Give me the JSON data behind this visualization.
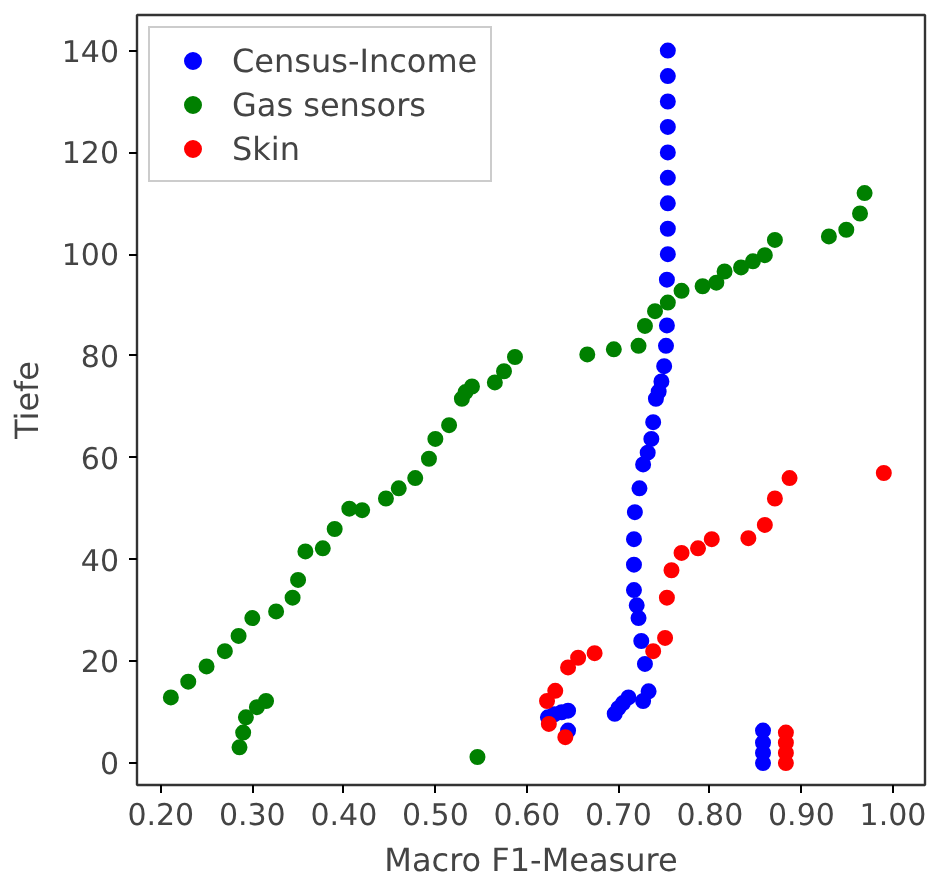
{
  "chart_data": {
    "type": "scatter",
    "xlabel": "Macro F1-Measure",
    "ylabel": "Tiefe",
    "xlim": [
      0.174,
      1.035
    ],
    "ylim": [
      -4.3,
      147
    ],
    "xticks": [
      {
        "value": 0.2,
        "label": "0.20"
      },
      {
        "value": 0.3,
        "label": "0.30"
      },
      {
        "value": 0.4,
        "label": "0.40"
      },
      {
        "value": 0.5,
        "label": "0.50"
      },
      {
        "value": 0.6,
        "label": "0.60"
      },
      {
        "value": 0.7,
        "label": "0.70"
      },
      {
        "value": 0.8,
        "label": "0.80"
      },
      {
        "value": 0.9,
        "label": "0.90"
      },
      {
        "value": 1.0,
        "label": "1.00"
      }
    ],
    "yticks": [
      0,
      20,
      40,
      60,
      80,
      100,
      120,
      140
    ],
    "grid": false,
    "legend": "top left",
    "marker": "circle",
    "series": [
      {
        "name": "Census-Income",
        "color": "#0000ff",
        "x": [
          0.754,
          0.754,
          0.754,
          0.754,
          0.754,
          0.754,
          0.754,
          0.754,
          0.754,
          0.753,
          0.753,
          0.752,
          0.75,
          0.747,
          0.744,
          0.741,
          0.738,
          0.736,
          0.732,
          0.727,
          0.723,
          0.718,
          0.717,
          0.717,
          0.717,
          0.72,
          0.722,
          0.725,
          0.729,
          0.733,
          0.727,
          0.711,
          0.705,
          0.7,
          0.696,
          0.645,
          0.638,
          0.63,
          0.623,
          0.645,
          0.858,
          0.858,
          0.858,
          0.858
        ],
        "values": [
          140,
          135,
          130,
          125,
          120,
          115,
          110,
          105,
          100,
          95,
          86,
          82,
          78,
          75,
          73,
          71.6,
          67,
          63.7,
          61,
          58.7,
          54,
          49.3,
          44,
          39,
          34,
          31,
          28.5,
          24,
          19.5,
          14.1,
          12.2,
          12.9,
          11.8,
          10.8,
          9.7,
          10.3,
          10,
          9.6,
          9,
          6.4,
          0,
          2,
          4,
          6.4
        ]
      },
      {
        "name": "Gas sensors",
        "color": "#008000",
        "x": [
          0.211,
          0.23,
          0.25,
          0.27,
          0.285,
          0.3,
          0.326,
          0.344,
          0.35,
          0.358,
          0.377,
          0.39,
          0.406,
          0.42,
          0.446,
          0.46,
          0.478,
          0.493,
          0.5,
          0.515,
          0.529,
          0.533,
          0.54,
          0.565,
          0.575,
          0.587,
          0.666,
          0.695,
          0.722,
          0.729,
          0.74,
          0.754,
          0.769,
          0.792,
          0.807,
          0.816,
          0.834,
          0.847,
          0.86,
          0.871,
          0.93,
          0.949,
          0.964,
          0.969,
          0.286,
          0.29,
          0.293,
          0.305,
          0.315,
          0.546
        ],
        "values": [
          12.9,
          16,
          19,
          22,
          25,
          28.5,
          29.8,
          32.5,
          36,
          41.6,
          42.2,
          46,
          50,
          49.7,
          52,
          54,
          56,
          59.8,
          63.7,
          66.4,
          71.6,
          72.9,
          74,
          74.8,
          77,
          79.8,
          80.3,
          81.3,
          82,
          85.9,
          88.8,
          90.5,
          92.8,
          93.7,
          94.4,
          96.6,
          97.4,
          98.6,
          99.8,
          102.8,
          103.5,
          104.8,
          108,
          112,
          3.1,
          6,
          9,
          11,
          12.2,
          1.2
        ]
      },
      {
        "name": "Skin",
        "color": "#ff0000",
        "x": [
          0.99,
          0.887,
          0.871,
          0.86,
          0.842,
          0.802,
          0.787,
          0.769,
          0.758,
          0.753,
          0.751,
          0.738,
          0.674,
          0.656,
          0.645,
          0.631,
          0.622,
          0.624,
          0.642,
          0.883,
          0.883,
          0.883,
          0.883
        ],
        "values": [
          57,
          56,
          52,
          46.8,
          44.2,
          44,
          42.2,
          41.3,
          37.9,
          32.5,
          24.6,
          22,
          21.6,
          20.7,
          18.8,
          14.2,
          12.2,
          7.7,
          5.1,
          0,
          2,
          4,
          6
        ]
      }
    ]
  }
}
